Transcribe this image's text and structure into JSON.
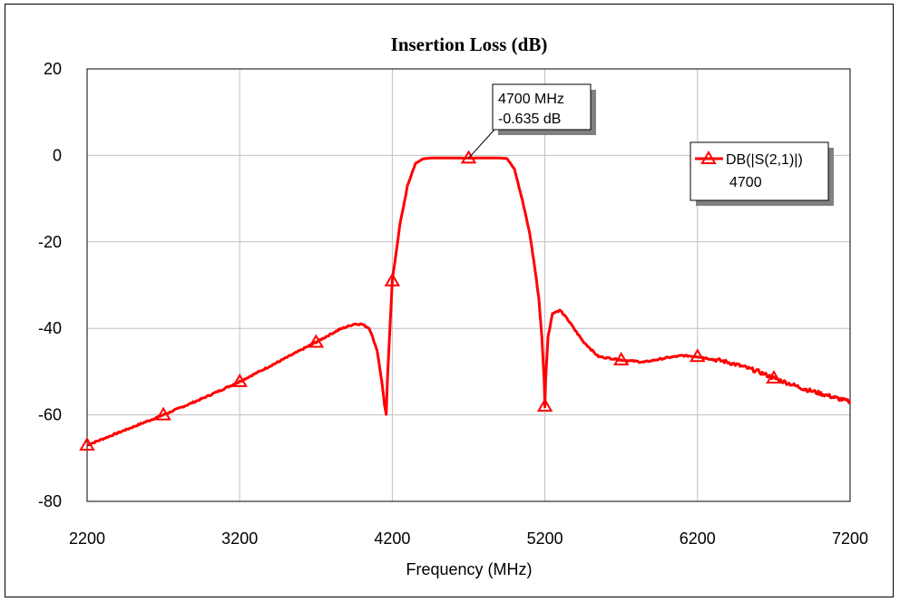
{
  "chart_data": {
    "type": "line",
    "title": "Insertion Loss (dB)",
    "xlabel": "Frequency (MHz)",
    "ylabel": "",
    "xlim": [
      2200,
      7200
    ],
    "ylim": [
      -80,
      20
    ],
    "x_ticks": [
      "2200",
      "3200",
      "4200",
      "5200",
      "6200",
      "7200"
    ],
    "y_ticks": [
      "20",
      "0",
      "-20",
      "-40",
      "-60",
      "-80"
    ],
    "grid": true,
    "legend_position": "top-right",
    "colors": {
      "series": "#ff0000",
      "grid": "#c0c0c0",
      "axis": "#000000"
    },
    "series": [
      {
        "name": "DB(|S(2,1)|)",
        "marker": "triangle",
        "x": [
          2200,
          2450,
          2700,
          2950,
          3200,
          3450,
          3700,
          3850,
          3950,
          4000,
          4050,
          4100,
          4130,
          4150,
          4160,
          4170,
          4200,
          4250,
          4300,
          4350,
          4400,
          4450,
          4500,
          4600,
          4700,
          4800,
          4900,
          4950,
          5000,
          5050,
          5100,
          5130,
          5160,
          5180,
          5195,
          5200,
          5205,
          5220,
          5250,
          5300,
          5350,
          5450,
          5550,
          5700,
          5850,
          6000,
          6100,
          6200,
          6400,
          6600,
          6700,
          6900,
          7100,
          7200
        ],
        "y": [
          -67,
          -63.5,
          -60,
          -56.3,
          -52.3,
          -47.8,
          -43.2,
          -40.3,
          -39,
          -39,
          -40,
          -45,
          -52,
          -58,
          -60,
          -50,
          -29,
          -16,
          -7,
          -2,
          -0.8,
          -0.6,
          -0.6,
          -0.6,
          -0.635,
          -0.6,
          -0.6,
          -0.7,
          -3,
          -10,
          -18,
          -25,
          -33,
          -42,
          -52,
          -58,
          -52,
          -42,
          -36.5,
          -35.8,
          -38,
          -43,
          -46.5,
          -47.3,
          -47.8,
          -46.8,
          -46.3,
          -46.5,
          -47.8,
          -50,
          -51.5,
          -54,
          -56,
          -57
        ],
        "marker_x": [
          2200,
          2700,
          3200,
          3700,
          4200,
          4700,
          5200,
          5700,
          6200,
          6700
        ]
      }
    ],
    "legend": {
      "entries": [
        "DB(|S(2,1)|)",
        "4700"
      ]
    },
    "marker_annotation": {
      "x": 4700,
      "y": -0.635,
      "line1": "4700 MHz",
      "line2": "-0.635 dB"
    }
  }
}
